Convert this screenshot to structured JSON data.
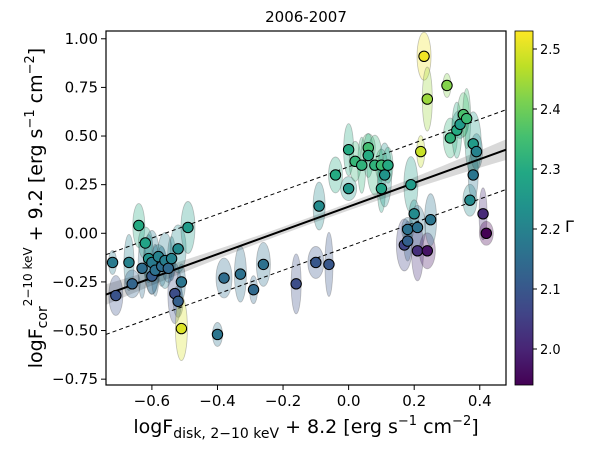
{
  "chart_data": {
    "type": "scatter",
    "title": "2006-2007",
    "xlabel": {
      "main": "logF",
      "sub": "disk, 2−10 keV",
      "rest": " + 8.2  [erg s",
      "sup1": "−1",
      "mid": " cm",
      "sup2": "−2",
      "end": "]"
    },
    "ylabel": {
      "main": "logF",
      "sub": "cor",
      "sup": "2−10 keV",
      "rest": " + 9.2  [erg s",
      "sup1": "−1",
      "mid": " cm",
      "sup2": "−2",
      "end": "]"
    },
    "xlim": [
      -0.74,
      0.48
    ],
    "ylim": [
      -0.78,
      1.04
    ],
    "xticks": [
      -0.6,
      -0.4,
      -0.2,
      0.0,
      0.2,
      0.4
    ],
    "xtick_labels": [
      "−0.6",
      "−0.4",
      "−0.2",
      "0.0",
      "0.2",
      "0.4"
    ],
    "yticks": [
      -0.75,
      -0.5,
      -0.25,
      0.0,
      0.25,
      0.5,
      0.75,
      1.0
    ],
    "ytick_labels": [
      "−0.75",
      "−0.50",
      "−0.25",
      "0.00",
      "0.25",
      "0.50",
      "0.75",
      "1.00"
    ],
    "colorbar": {
      "label": "Γ",
      "range": [
        1.94,
        2.53
      ],
      "ticks": [
        2.0,
        2.1,
        2.2,
        2.3,
        2.4,
        2.5
      ],
      "tick_labels": [
        "2.0",
        "2.1",
        "2.2",
        "2.3",
        "2.4",
        "2.5"
      ]
    },
    "fit_line": {
      "x": [
        -0.74,
        0.48
      ],
      "y": [
        -0.315,
        0.43
      ]
    },
    "band_offset": 0.205,
    "points": [
      {
        "x": -0.72,
        "y": -0.15,
        "g": 2.18
      },
      {
        "x": -0.71,
        "y": -0.32,
        "g": 2.09
      },
      {
        "x": -0.67,
        "y": -0.15,
        "g": 2.2
      },
      {
        "x": -0.66,
        "y": -0.26,
        "g": 2.13
      },
      {
        "x": -0.64,
        "y": 0.04,
        "g": 2.3
      },
      {
        "x": -0.63,
        "y": -0.18,
        "g": 2.15
      },
      {
        "x": -0.62,
        "y": -0.05,
        "g": 2.28
      },
      {
        "x": -0.61,
        "y": -0.13,
        "g": 2.24
      },
      {
        "x": -0.6,
        "y": -0.15,
        "g": 2.18
      },
      {
        "x": -0.6,
        "y": -0.22,
        "g": 2.11
      },
      {
        "x": -0.59,
        "y": -0.19,
        "g": 2.16
      },
      {
        "x": -0.58,
        "y": -0.12,
        "g": 2.2
      },
      {
        "x": -0.57,
        "y": -0.17,
        "g": 2.15
      },
      {
        "x": -0.56,
        "y": -0.14,
        "g": 2.19
      },
      {
        "x": -0.55,
        "y": -0.18,
        "g": 2.14
      },
      {
        "x": -0.54,
        "y": -0.13,
        "g": 2.2
      },
      {
        "x": -0.53,
        "y": -0.31,
        "g": 2.08
      },
      {
        "x": -0.52,
        "y": -0.35,
        "g": 2.12
      },
      {
        "x": -0.52,
        "y": -0.08,
        "g": 2.22
      },
      {
        "x": -0.51,
        "y": -0.49,
        "g": 2.5
      },
      {
        "x": -0.51,
        "y": -0.25,
        "g": 2.17
      },
      {
        "x": -0.49,
        "y": 0.03,
        "g": 2.26
      },
      {
        "x": -0.4,
        "y": -0.52,
        "g": 2.17
      },
      {
        "x": -0.38,
        "y": -0.23,
        "g": 2.15
      },
      {
        "x": -0.33,
        "y": -0.21,
        "g": 2.16
      },
      {
        "x": -0.29,
        "y": -0.29,
        "g": 2.14
      },
      {
        "x": -0.26,
        "y": -0.16,
        "g": 2.16
      },
      {
        "x": -0.16,
        "y": -0.26,
        "g": 2.08
      },
      {
        "x": -0.1,
        "y": -0.15,
        "g": 2.1
      },
      {
        "x": -0.09,
        "y": 0.14,
        "g": 2.22
      },
      {
        "x": -0.06,
        "y": -0.16,
        "g": 2.1
      },
      {
        "x": -0.04,
        "y": 0.3,
        "g": 2.3
      },
      {
        "x": 0.0,
        "y": 0.43,
        "g": 2.3
      },
      {
        "x": 0.0,
        "y": 0.23,
        "g": 2.25
      },
      {
        "x": 0.02,
        "y": 0.37,
        "g": 2.33
      },
      {
        "x": 0.04,
        "y": 0.35,
        "g": 2.32
      },
      {
        "x": 0.06,
        "y": 0.44,
        "g": 2.35
      },
      {
        "x": 0.06,
        "y": 0.4,
        "g": 2.3
      },
      {
        "x": 0.08,
        "y": 0.35,
        "g": 2.32
      },
      {
        "x": 0.1,
        "y": 0.35,
        "g": 2.34
      },
      {
        "x": 0.1,
        "y": 0.23,
        "g": 2.28
      },
      {
        "x": 0.11,
        "y": 0.3,
        "g": 2.24
      },
      {
        "x": 0.12,
        "y": 0.35,
        "g": 2.3
      },
      {
        "x": 0.17,
        "y": -0.06,
        "g": 2.06
      },
      {
        "x": 0.18,
        "y": 0.02,
        "g": 2.16
      },
      {
        "x": 0.18,
        "y": -0.04,
        "g": 2.12
      },
      {
        "x": 0.19,
        "y": 0.25,
        "g": 2.26
      },
      {
        "x": 0.2,
        "y": 0.1,
        "g": 2.22
      },
      {
        "x": 0.21,
        "y": 0.03,
        "g": 2.16
      },
      {
        "x": 0.21,
        "y": -0.09,
        "g": 2.02
      },
      {
        "x": 0.22,
        "y": 0.42,
        "g": 2.48
      },
      {
        "x": 0.23,
        "y": 0.91,
        "g": 2.52
      },
      {
        "x": 0.24,
        "y": 0.69,
        "g": 2.44
      },
      {
        "x": 0.24,
        "y": -0.09,
        "g": 1.97
      },
      {
        "x": 0.25,
        "y": 0.07,
        "g": 2.17
      },
      {
        "x": 0.3,
        "y": 0.76,
        "g": 2.42
      },
      {
        "x": 0.31,
        "y": 0.49,
        "g": 2.32
      },
      {
        "x": 0.33,
        "y": 0.53,
        "g": 2.3
      },
      {
        "x": 0.34,
        "y": 0.56,
        "g": 2.26
      },
      {
        "x": 0.35,
        "y": 0.61,
        "g": 2.36
      },
      {
        "x": 0.36,
        "y": 0.59,
        "g": 2.34
      },
      {
        "x": 0.37,
        "y": 0.17,
        "g": 2.22
      },
      {
        "x": 0.38,
        "y": 0.3,
        "g": 2.17
      },
      {
        "x": 0.38,
        "y": 0.46,
        "g": 2.26
      },
      {
        "x": 0.39,
        "y": 0.42,
        "g": 2.2
      },
      {
        "x": 0.41,
        "y": 0.1,
        "g": 2.01
      },
      {
        "x": 0.42,
        "y": 0.0,
        "g": 1.94
      }
    ]
  }
}
